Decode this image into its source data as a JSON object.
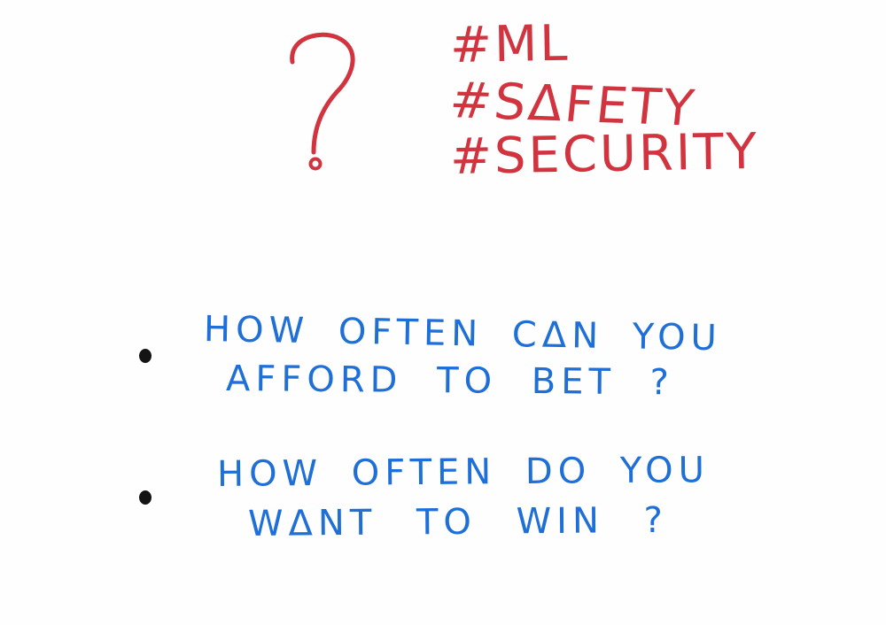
{
  "colors": {
    "background": "#fefefe",
    "hashtag_red": "#d2343f",
    "text_blue": "#1f6fd8",
    "bullet_black": "#141414"
  },
  "drawing": {
    "question_mark_icon": "question-mark",
    "hashtags": [
      "#ML",
      "#SΔFETY",
      "#SECURITY"
    ]
  },
  "bullets": [
    {
      "line1": "HOW OFTEN CΔN YOU",
      "line2": "AFFORD TO BET ?"
    },
    {
      "line1": "HOW OFTEN DO YOU",
      "line2": "WΔNT TO WIN ?"
    }
  ]
}
